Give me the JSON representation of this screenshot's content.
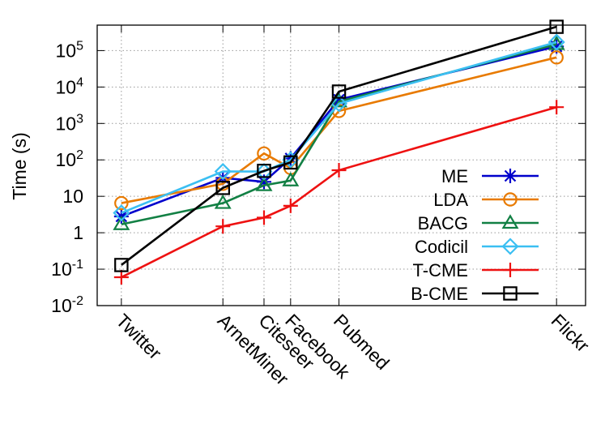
{
  "chart_data": {
    "type": "line",
    "title": "",
    "xlabel": "",
    "ylabel": "Time (s)",
    "yscale": "log",
    "ylim": [
      0.01,
      500000
    ],
    "grid": true,
    "legend_position": "bottom-right",
    "categories": [
      "Twitter",
      "ArnetMiner",
      "Citeseer",
      "Facebook",
      "Pubmed",
      "Flickr"
    ],
    "x": [
      1,
      3.1,
      3.95,
      4.5,
      5.5,
      10
    ],
    "yticks": [
      {
        "value": 0.01,
        "base": "10",
        "exp": "-2"
      },
      {
        "value": 0.1,
        "base": "10",
        "exp": "-1"
      },
      {
        "value": 1,
        "base": "1",
        "exp": ""
      },
      {
        "value": 10,
        "base": "10",
        "exp": ""
      },
      {
        "value": 100,
        "base": "10",
        "exp": "2"
      },
      {
        "value": 1000,
        "base": "10",
        "exp": "3"
      },
      {
        "value": 10000,
        "base": "10",
        "exp": "4"
      },
      {
        "value": 100000,
        "base": "10",
        "exp": "5"
      }
    ],
    "series": [
      {
        "name": "ME",
        "color": "#0000cc",
        "marker": "star",
        "values": [
          2.8,
          32,
          25,
          110,
          4500,
          130000
        ]
      },
      {
        "name": "LDA",
        "color": "#e87a00",
        "marker": "circle",
        "values": [
          6.5,
          22,
          150,
          60,
          2200,
          65000
        ]
      },
      {
        "name": "BACG",
        "color": "#128044",
        "marker": "triangle",
        "values": [
          1.7,
          6.5,
          20,
          27,
          4000,
          150000
        ]
      },
      {
        "name": "Codicil",
        "color": "#3bbff2",
        "marker": "diamond",
        "values": [
          3.5,
          48,
          48,
          100,
          3500,
          170000
        ]
      },
      {
        "name": "T-CME",
        "color": "#ee1111",
        "marker": "plus",
        "values": [
          0.06,
          1.5,
          2.6,
          5.5,
          52,
          2800
        ]
      },
      {
        "name": "B-CME",
        "color": "#000000",
        "marker": "square",
        "values": [
          0.13,
          17,
          50,
          85,
          7500,
          450000
        ]
      }
    ]
  }
}
